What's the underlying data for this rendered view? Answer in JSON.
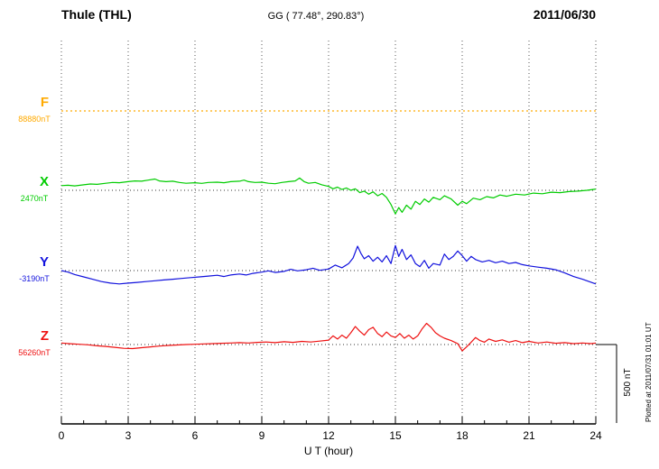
{
  "header": {
    "station": "Thule (THL)",
    "coordinates": "GG ( 77.48°, 290.83°)",
    "date": "2011/06/30"
  },
  "right_margin": {
    "plotted_note": "Plotted at 2011/07/31 01:01 UT"
  },
  "chart_data": {
    "type": "line",
    "title": "Thule (THL) magnetogram 2011/06/30",
    "xlabel": "U T (hour)",
    "xlim": [
      0,
      24
    ],
    "x_ticks": [
      0,
      3,
      6,
      9,
      12,
      15,
      18,
      21,
      24
    ],
    "x_minor_tick_step": 1,
    "grid": "dotted vertical lines at major ticks, dotted horizontal baseline per component",
    "legend_position": "left-margin component labels",
    "scale_bar": {
      "label": "500 nT",
      "nT": 500
    },
    "series": [
      {
        "name": "F",
        "unit_label": "88880nT",
        "baseline_nT": 88880,
        "color": "#ffaa00",
        "line_style": "dotted",
        "panel_baseline_y": 123,
        "points_delta_nT": [
          [
            0,
            0
          ],
          [
            24,
            0
          ]
        ]
      },
      {
        "name": "X",
        "unit_label": "2470nT",
        "baseline_nT": 2470,
        "color": "#00cc00",
        "line_style": "solid",
        "panel_baseline_y": 211,
        "points_delta_nT": [
          [
            0,
            30
          ],
          [
            0.3,
            32
          ],
          [
            0.6,
            28
          ],
          [
            1,
            35
          ],
          [
            1.3,
            40
          ],
          [
            1.6,
            38
          ],
          [
            2,
            45
          ],
          [
            2.3,
            50
          ],
          [
            2.6,
            48
          ],
          [
            3,
            55
          ],
          [
            3.3,
            60
          ],
          [
            3.6,
            58
          ],
          [
            3.9,
            65
          ],
          [
            4.2,
            72
          ],
          [
            4.4,
            60
          ],
          [
            4.7,
            55
          ],
          [
            5,
            58
          ],
          [
            5.3,
            50
          ],
          [
            5.6,
            45
          ],
          [
            6,
            48
          ],
          [
            6.3,
            44
          ],
          [
            6.6,
            50
          ],
          [
            7,
            52
          ],
          [
            7.3,
            48
          ],
          [
            7.6,
            55
          ],
          [
            8,
            58
          ],
          [
            8.2,
            65
          ],
          [
            8.4,
            55
          ],
          [
            8.7,
            50
          ],
          [
            9,
            52
          ],
          [
            9.3,
            45
          ],
          [
            9.6,
            42
          ],
          [
            9.9,
            50
          ],
          [
            10.2,
            55
          ],
          [
            10.5,
            60
          ],
          [
            10.7,
            78
          ],
          [
            10.9,
            55
          ],
          [
            11.1,
            45
          ],
          [
            11.4,
            50
          ],
          [
            11.7,
            35
          ],
          [
            12,
            25
          ],
          [
            12.2,
            10
          ],
          [
            12.4,
            20
          ],
          [
            12.6,
            5
          ],
          [
            12.8,
            15
          ],
          [
            13,
            0
          ],
          [
            13.2,
            10
          ],
          [
            13.4,
            -15
          ],
          [
            13.6,
            -5
          ],
          [
            13.8,
            -25
          ],
          [
            14,
            -10
          ],
          [
            14.2,
            -35
          ],
          [
            14.4,
            -20
          ],
          [
            14.6,
            -45
          ],
          [
            14.8,
            -90
          ],
          [
            15,
            -150
          ],
          [
            15.15,
            -110
          ],
          [
            15.3,
            -140
          ],
          [
            15.5,
            -95
          ],
          [
            15.7,
            -120
          ],
          [
            15.9,
            -70
          ],
          [
            16.1,
            -90
          ],
          [
            16.3,
            -55
          ],
          [
            16.5,
            -75
          ],
          [
            16.7,
            -45
          ],
          [
            17,
            -60
          ],
          [
            17.2,
            -35
          ],
          [
            17.5,
            -55
          ],
          [
            17.8,
            -95
          ],
          [
            18,
            -70
          ],
          [
            18.2,
            -85
          ],
          [
            18.5,
            -50
          ],
          [
            18.8,
            -60
          ],
          [
            19.1,
            -40
          ],
          [
            19.4,
            -48
          ],
          [
            19.7,
            -30
          ],
          [
            20,
            -38
          ],
          [
            20.4,
            -25
          ],
          [
            20.8,
            -30
          ],
          [
            21.2,
            -18
          ],
          [
            21.6,
            -22
          ],
          [
            22,
            -12
          ],
          [
            22.4,
            -15
          ],
          [
            22.8,
            -8
          ],
          [
            23.2,
            -5
          ],
          [
            23.6,
            0
          ],
          [
            24,
            8
          ]
        ]
      },
      {
        "name": "Y",
        "unit_label": "-3190nT",
        "baseline_nT": -3190,
        "color": "#1111dd",
        "line_style": "solid",
        "panel_baseline_y": 300,
        "points_delta_nT": [
          [
            0,
            0
          ],
          [
            0.3,
            -10
          ],
          [
            0.6,
            -25
          ],
          [
            1,
            -40
          ],
          [
            1.4,
            -55
          ],
          [
            1.8,
            -70
          ],
          [
            2.2,
            -80
          ],
          [
            2.6,
            -85
          ],
          [
            3,
            -80
          ],
          [
            3.4,
            -75
          ],
          [
            3.8,
            -70
          ],
          [
            4.2,
            -65
          ],
          [
            4.6,
            -60
          ],
          [
            5,
            -55
          ],
          [
            5.4,
            -50
          ],
          [
            5.8,
            -45
          ],
          [
            6.2,
            -40
          ],
          [
            6.6,
            -35
          ],
          [
            7,
            -30
          ],
          [
            7.3,
            -38
          ],
          [
            7.6,
            -28
          ],
          [
            8,
            -22
          ],
          [
            8.3,
            -28
          ],
          [
            8.6,
            -18
          ],
          [
            9,
            -10
          ],
          [
            9.3,
            -2
          ],
          [
            9.6,
            -12
          ],
          [
            10,
            -5
          ],
          [
            10.3,
            8
          ],
          [
            10.6,
            -2
          ],
          [
            11,
            5
          ],
          [
            11.3,
            15
          ],
          [
            11.6,
            2
          ],
          [
            12,
            10
          ],
          [
            12.3,
            35
          ],
          [
            12.6,
            18
          ],
          [
            12.9,
            45
          ],
          [
            13.1,
            80
          ],
          [
            13.3,
            155
          ],
          [
            13.45,
            110
          ],
          [
            13.6,
            75
          ],
          [
            13.8,
            95
          ],
          [
            14,
            60
          ],
          [
            14.2,
            85
          ],
          [
            14.4,
            55
          ],
          [
            14.6,
            95
          ],
          [
            14.8,
            45
          ],
          [
            15,
            160
          ],
          [
            15.15,
            90
          ],
          [
            15.3,
            135
          ],
          [
            15.5,
            70
          ],
          [
            15.7,
            100
          ],
          [
            15.9,
            45
          ],
          [
            16.1,
            25
          ],
          [
            16.3,
            65
          ],
          [
            16.5,
            15
          ],
          [
            16.7,
            45
          ],
          [
            17,
            35
          ],
          [
            17.2,
            105
          ],
          [
            17.4,
            70
          ],
          [
            17.6,
            90
          ],
          [
            17.8,
            125
          ],
          [
            18,
            95
          ],
          [
            18.2,
            60
          ],
          [
            18.4,
            90
          ],
          [
            18.6,
            70
          ],
          [
            18.9,
            55
          ],
          [
            19.2,
            65
          ],
          [
            19.5,
            50
          ],
          [
            19.8,
            60
          ],
          [
            20.1,
            45
          ],
          [
            20.4,
            52
          ],
          [
            20.7,
            38
          ],
          [
            21,
            30
          ],
          [
            21.4,
            22
          ],
          [
            21.8,
            15
          ],
          [
            22.2,
            5
          ],
          [
            22.6,
            -15
          ],
          [
            23,
            -38
          ],
          [
            23.4,
            -55
          ],
          [
            23.7,
            -70
          ],
          [
            24,
            -85
          ]
        ]
      },
      {
        "name": "Z",
        "unit_label": "56260nT",
        "baseline_nT": 56260,
        "color": "#ee1111",
        "line_style": "solid",
        "panel_baseline_y": 382,
        "points_delta_nT": [
          [
            0,
            10
          ],
          [
            0.4,
            5
          ],
          [
            0.8,
            2
          ],
          [
            1.2,
            -2
          ],
          [
            1.6,
            -8
          ],
          [
            2,
            -12
          ],
          [
            2.4,
            -18
          ],
          [
            2.8,
            -24
          ],
          [
            3.2,
            -26
          ],
          [
            3.6,
            -20
          ],
          [
            4,
            -15
          ],
          [
            4.4,
            -10
          ],
          [
            4.8,
            -6
          ],
          [
            5.2,
            -3
          ],
          [
            5.6,
            0
          ],
          [
            6,
            2
          ],
          [
            6.4,
            4
          ],
          [
            6.8,
            6
          ],
          [
            7.2,
            8
          ],
          [
            7.6,
            10
          ],
          [
            8,
            12
          ],
          [
            8.4,
            10
          ],
          [
            8.8,
            14
          ],
          [
            9.2,
            16
          ],
          [
            9.6,
            12
          ],
          [
            10,
            18
          ],
          [
            10.4,
            14
          ],
          [
            10.8,
            20
          ],
          [
            11.2,
            16
          ],
          [
            11.6,
            22
          ],
          [
            12,
            28
          ],
          [
            12.2,
            55
          ],
          [
            12.4,
            35
          ],
          [
            12.6,
            60
          ],
          [
            12.8,
            40
          ],
          [
            13,
            75
          ],
          [
            13.2,
            115
          ],
          [
            13.4,
            85
          ],
          [
            13.6,
            60
          ],
          [
            13.8,
            95
          ],
          [
            14,
            110
          ],
          [
            14.2,
            70
          ],
          [
            14.4,
            50
          ],
          [
            14.6,
            80
          ],
          [
            14.8,
            55
          ],
          [
            15,
            45
          ],
          [
            15.2,
            70
          ],
          [
            15.4,
            40
          ],
          [
            15.6,
            60
          ],
          [
            15.8,
            35
          ],
          [
            16,
            55
          ],
          [
            16.2,
            100
          ],
          [
            16.4,
            135
          ],
          [
            16.6,
            110
          ],
          [
            16.8,
            75
          ],
          [
            17,
            55
          ],
          [
            17.2,
            40
          ],
          [
            17.5,
            25
          ],
          [
            17.8,
            5
          ],
          [
            18,
            -40
          ],
          [
            18.2,
            -15
          ],
          [
            18.4,
            15
          ],
          [
            18.6,
            45
          ],
          [
            18.8,
            25
          ],
          [
            19,
            15
          ],
          [
            19.2,
            35
          ],
          [
            19.5,
            20
          ],
          [
            19.8,
            30
          ],
          [
            20.1,
            15
          ],
          [
            20.4,
            25
          ],
          [
            20.7,
            12
          ],
          [
            21,
            20
          ],
          [
            21.4,
            10
          ],
          [
            21.8,
            16
          ],
          [
            22.2,
            8
          ],
          [
            22.6,
            12
          ],
          [
            23,
            6
          ],
          [
            23.4,
            10
          ],
          [
            23.8,
            6
          ],
          [
            24,
            10
          ]
        ]
      }
    ]
  }
}
